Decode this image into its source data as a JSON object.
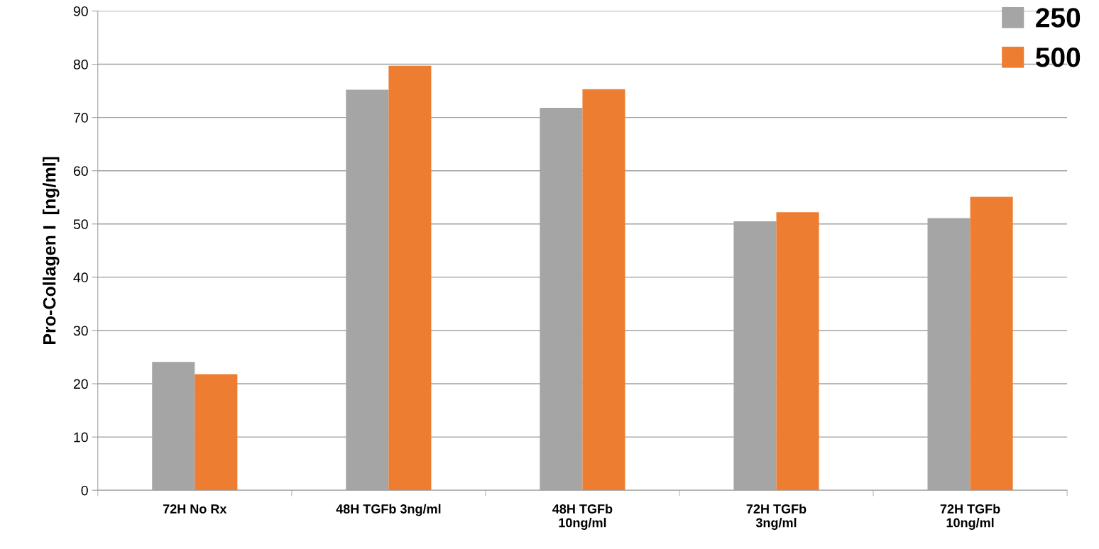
{
  "chart_data": {
    "type": "bar",
    "ylabel": "Pro-Collagen I  [ng/ml]",
    "categories": [
      "72H No Rx",
      "48H TGFb 3ng/ml",
      "48H TGFb\n10ng/ml",
      "72H TGFb\n3ng/ml",
      "72H TGFb\n10ng/ml"
    ],
    "series": [
      {
        "name": "250",
        "color": "#a5a5a5",
        "values": [
          24.1,
          75.2,
          71.8,
          50.5,
          51.1
        ]
      },
      {
        "name": "500",
        "color": "#ed7d31",
        "values": [
          21.8,
          79.7,
          75.3,
          52.2,
          55.1
        ]
      }
    ],
    "ylim": [
      0,
      90
    ],
    "yticks": [
      0,
      10,
      20,
      30,
      40,
      50,
      60,
      70,
      80,
      90
    ],
    "grid": "y",
    "legend": "top right"
  }
}
